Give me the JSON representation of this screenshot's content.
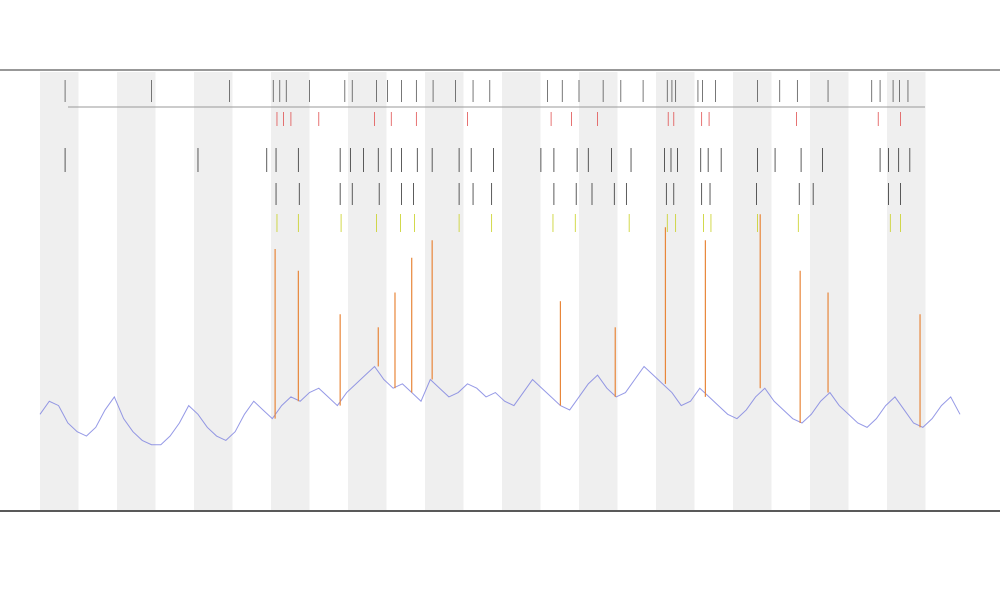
{
  "chart_data": {
    "type": "line",
    "xlim": [
      0,
      99
    ],
    "ylim": [
      0,
      100
    ],
    "series": [
      {
        "color": "#7b7fe0",
        "values": [
          22,
          25,
          24,
          20,
          18,
          17,
          19,
          23,
          26,
          21,
          18,
          16,
          15,
          15,
          17,
          20,
          24,
          22,
          19,
          17,
          16,
          18,
          22,
          25,
          23,
          21,
          24,
          26,
          25,
          27,
          28,
          26,
          24,
          27,
          29,
          31,
          33,
          30,
          28,
          29,
          27,
          25,
          30,
          28,
          26,
          27,
          29,
          28,
          26,
          27,
          25,
          24,
          27,
          30,
          28,
          26,
          24,
          23,
          26,
          29,
          31,
          28,
          26,
          27,
          30,
          33,
          31,
          29,
          27,
          24,
          25,
          28,
          26,
          24,
          22,
          21,
          23,
          26,
          28,
          25,
          23,
          21,
          20,
          22,
          25,
          27,
          24,
          22,
          20,
          19,
          21,
          24,
          26,
          23,
          20,
          19,
          21,
          24,
          26,
          22
        ]
      },
      {
        "color": "#e8863a",
        "x": [
          25.3,
          27.8,
          32.3,
          36.4,
          38.2,
          40,
          42.2,
          56,
          61.9,
          67.3,
          71.6,
          77.5,
          81.8,
          84.8,
          94.7
        ],
        "values": [
          60,
          55,
          45,
          42,
          50,
          58,
          62,
          48,
          42,
          65,
          62,
          68,
          55,
          50,
          45
        ]
      }
    ],
    "events": [
      {
        "color": "#555555",
        "x": [
          2.7,
          12,
          20.4,
          25.1,
          25.8,
          26.5,
          29,
          32.8,
          33.6,
          36.2,
          37.4,
          38.9,
          40.5,
          42.3,
          44.7,
          46.6,
          48.4,
          54.6,
          56.2,
          58,
          60.6,
          62.5,
          64.9,
          67.5,
          68,
          68.4,
          70.8,
          71.3,
          72.7,
          77.2,
          79.6,
          81.5,
          84.8,
          89.5,
          90.4,
          91.8,
          92.5,
          93.4
        ]
      },
      {
        "color": "#e05050",
        "x": [
          25.5,
          26.2,
          27,
          30,
          36,
          37.8,
          40.5,
          46,
          55,
          57.2,
          60,
          67.6,
          68.2,
          71.2,
          72,
          81.4,
          90.2,
          92.6
        ]
      },
      {
        "color": "#333333",
        "x": [
          2.7,
          17,
          24.4,
          25.4,
          27.8,
          32.3,
          33.4,
          34.8,
          36.4,
          37.8,
          38.9,
          40.6,
          42.2,
          45.1,
          46.4,
          48.8,
          53.9,
          55.3,
          57.8,
          59,
          61.5,
          63.6,
          67.2,
          67.9,
          68.6,
          71.1,
          71.9,
          73.3,
          77.2,
          79.1,
          81.9,
          84.2,
          90.4,
          91.3,
          92.4,
          93.6
        ]
      },
      {
        "color": "#333333",
        "x": [
          25.4,
          27.9,
          32.3,
          33.6,
          36.5,
          38.9,
          40.2,
          45.1,
          46.6,
          48.6,
          55.3,
          57.7,
          59.4,
          61.8,
          63.1,
          67.4,
          68.2,
          71.2,
          72.1,
          77.1,
          81.7,
          83.2,
          91.3,
          92.6
        ]
      },
      {
        "color": "#c8d020",
        "x": [
          25.5,
          27.8,
          32.4,
          36.2,
          38.8,
          40.3,
          45.1,
          48.6,
          55.2,
          57.6,
          63.4,
          67.5,
          68.4,
          71.4,
          72.2,
          77.2,
          81.6,
          91.5,
          92.6
        ]
      }
    ]
  }
}
